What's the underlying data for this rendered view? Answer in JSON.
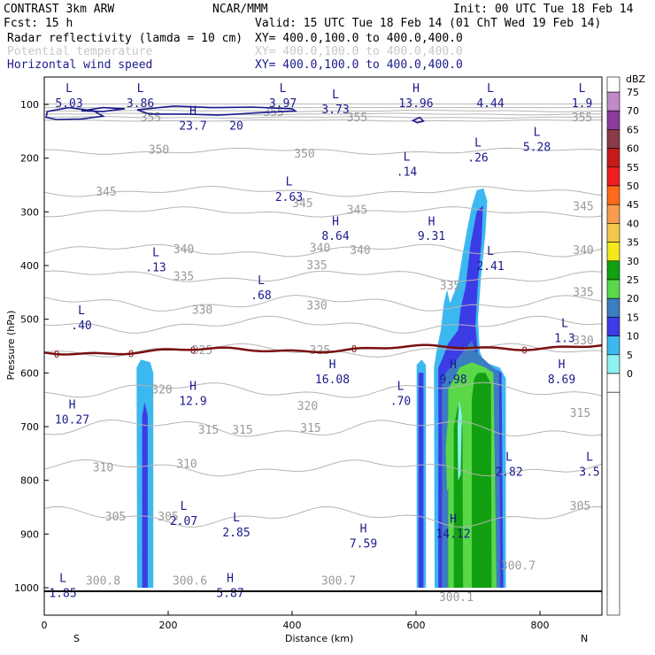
{
  "header": {
    "model": "CONTRAST  3km ARW",
    "org": "NCAR/MMM",
    "init": "Init: 00 UTC Tue 18 Feb 14",
    "fcst": "Fcst:   15 h",
    "valid": "Valid: 15 UTC Tue 18 Feb 14 (01 ChT Wed 19 Feb 14)",
    "fields": [
      {
        "name": "Radar reflectivity (lamda = 10 cm)",
        "xy": "XY= 400.0,100.0 to 400.0,400.0",
        "color": "#000000"
      },
      {
        "name": "Potential temperature",
        "xy": "XY= 400.0,100.0 to 400.0,400.0",
        "color": "#c8c8c8"
      },
      {
        "name": "Horizontal wind speed",
        "xy": "XY= 400.0,100.0 to 400.0,400.0",
        "color": "#1a1a8c"
      }
    ]
  },
  "chart_data": {
    "type": "cross-section",
    "xlabel": "Distance (km)",
    "ylabel": "Pressure (hPa)",
    "xlim": [
      0,
      900
    ],
    "ylim": [
      1050,
      60
    ],
    "x_ticks": [
      0,
      200,
      400,
      600,
      800
    ],
    "y_ticks": [
      100,
      200,
      300,
      400,
      500,
      600,
      700,
      800,
      900,
      1000
    ],
    "x_ends": {
      "left": "S",
      "right": "N"
    },
    "colorbar": {
      "unit": "dBZ",
      "levels": [
        75,
        70,
        65,
        60,
        55,
        50,
        45,
        40,
        35,
        30,
        25,
        20,
        15,
        10,
        5,
        0
      ],
      "colors": [
        "#c08ac6",
        "#8b3c9c",
        "#8a3a4a",
        "#c41a1a",
        "#f01e1e",
        "#ff6a1a",
        "#f59c4e",
        "#f2c84a",
        "#f2e81c",
        "#12a012",
        "#5ad84a",
        "#3c7cc0",
        "#3c3ce6",
        "#3cb8f0",
        "#8ef0f0",
        "#ffffff"
      ]
    },
    "freezing_line_label": "0",
    "theta_labels": [
      {
        "text": "355",
        "x": 172,
        "p": 125
      },
      {
        "text": "355",
        "x": 505,
        "p": 125
      },
      {
        "text": "355",
        "x": 868,
        "p": 125
      },
      {
        "text": "355",
        "x": 370,
        "p": 115
      },
      {
        "text": "350",
        "x": 185,
        "p": 185
      },
      {
        "text": "350",
        "x": 420,
        "p": 192
      },
      {
        "text": "345",
        "x": 100,
        "p": 263
      },
      {
        "text": "345",
        "x": 417,
        "p": 285
      },
      {
        "text": "345",
        "x": 505,
        "p": 297
      },
      {
        "text": "345",
        "x": 870,
        "p": 290
      },
      {
        "text": "340",
        "x": 225,
        "p": 370
      },
      {
        "text": "340",
        "x": 445,
        "p": 368
      },
      {
        "text": "340",
        "x": 510,
        "p": 372
      },
      {
        "text": "340",
        "x": 870,
        "p": 372
      },
      {
        "text": "335",
        "x": 225,
        "p": 421
      },
      {
        "text": "335",
        "x": 440,
        "p": 400
      },
      {
        "text": "335",
        "x": 655,
        "p": 438
      },
      {
        "text": "335",
        "x": 870,
        "p": 450
      },
      {
        "text": "330",
        "x": 255,
        "p": 483
      },
      {
        "text": "330",
        "x": 440,
        "p": 475
      },
      {
        "text": "330",
        "x": 870,
        "p": 540
      },
      {
        "text": "325",
        "x": 255,
        "p": 558
      },
      {
        "text": "325",
        "x": 445,
        "p": 558
      },
      {
        "text": "320",
        "x": 190,
        "p": 632
      },
      {
        "text": "320",
        "x": 425,
        "p": 662
      },
      {
        "text": "315",
        "x": 265,
        "p": 707
      },
      {
        "text": "315",
        "x": 320,
        "p": 707
      },
      {
        "text": "315",
        "x": 430,
        "p": 703
      },
      {
        "text": "315",
        "x": 865,
        "p": 675
      },
      {
        "text": "310",
        "x": 95,
        "p": 777
      },
      {
        "text": "310",
        "x": 230,
        "p": 770
      },
      {
        "text": "305",
        "x": 115,
        "p": 868
      },
      {
        "text": "305",
        "x": 200,
        "p": 868
      },
      {
        "text": "305",
        "x": 865,
        "p": 848
      },
      {
        "text": "300.8",
        "x": 95,
        "p": 988
      },
      {
        "text": "300.6",
        "x": 235,
        "p": 988
      },
      {
        "text": "300.7",
        "x": 475,
        "p": 988
      },
      {
        "text": "300.1",
        "x": 665,
        "p": 1018
      },
      {
        "text": "300.7",
        "x": 765,
        "p": 960
      }
    ],
    "wind_extrema": [
      {
        "kind": "L",
        "value": "5.03",
        "x": 40,
        "p": 70,
        "vp": 98
      },
      {
        "kind": "L",
        "value": "3.86",
        "x": 155,
        "p": 70,
        "vp": 98
      },
      {
        "kind": "L",
        "value": "3.97",
        "x": 385,
        "p": 70,
        "vp": 98
      },
      {
        "kind": "L",
        "value": "3.73",
        "x": 470,
        "p": 82,
        "vp": 110
      },
      {
        "kind": "H",
        "value": "13.96",
        "x": 600,
        "p": 70,
        "vp": 98
      },
      {
        "kind": "L",
        "value": "4.44",
        "x": 720,
        "p": 70,
        "vp": 98
      },
      {
        "kind": "L",
        "value": "1.9",
        "x": 868,
        "p": 70,
        "vp": 98
      },
      {
        "kind": "H",
        "value": "23.7",
        "x": 240,
        "p": 112,
        "vp": 140
      },
      {
        "kind": "L",
        "value": "5.28",
        "x": 795,
        "p": 152,
        "vp": 180
      },
      {
        "kind": "L",
        "value": ".26",
        "x": 700,
        "p": 172,
        "vp": 200
      },
      {
        "kind": "L",
        "value": ".14",
        "x": 585,
        "p": 198,
        "vp": 226
      },
      {
        "kind": "L",
        "value": "2.63",
        "x": 395,
        "p": 244,
        "vp": 273
      },
      {
        "kind": "H",
        "value": "8.64",
        "x": 470,
        "p": 318,
        "vp": 346
      },
      {
        "kind": "H",
        "value": "9.31",
        "x": 625,
        "p": 318,
        "vp": 346
      },
      {
        "kind": "L",
        "value": ".13",
        "x": 180,
        "p": 376,
        "vp": 404
      },
      {
        "kind": "L",
        "value": "2.41",
        "x": 720,
        "p": 374,
        "vp": 402
      },
      {
        "kind": "L",
        "value": ".68",
        "x": 350,
        "p": 428,
        "vp": 456
      },
      {
        "kind": "L",
        "value": ".40",
        "x": 60,
        "p": 484,
        "vp": 512
      },
      {
        "kind": "L",
        "value": "1.3",
        "x": 840,
        "p": 508,
        "vp": 536
      },
      {
        "kind": "H",
        "value": "16.08",
        "x": 465,
        "p": 585,
        "vp": 613
      },
      {
        "kind": "H",
        "value": "9.98",
        "x": 660,
        "p": 585,
        "vp": 613
      },
      {
        "kind": "H",
        "value": "8.69",
        "x": 835,
        "p": 585,
        "vp": 613
      },
      {
        "kind": "H",
        "value": "12.9",
        "x": 240,
        "p": 625,
        "vp": 653
      },
      {
        "kind": "L",
        "value": ".70",
        "x": 575,
        "p": 625,
        "vp": 653
      },
      {
        "kind": "H",
        "value": "10.27",
        "x": 45,
        "p": 660,
        "vp": 688
      },
      {
        "kind": "L",
        "value": "2.82",
        "x": 750,
        "p": 757,
        "vp": 785
      },
      {
        "kind": "L",
        "value": "3.5",
        "x": 880,
        "p": 757,
        "vp": 785
      },
      {
        "kind": "L",
        "value": "2.07",
        "x": 225,
        "p": 848,
        "vp": 876
      },
      {
        "kind": "L",
        "value": "2.85",
        "x": 310,
        "p": 870,
        "vp": 898
      },
      {
        "kind": "H",
        "value": "7.59",
        "x": 515,
        "p": 890,
        "vp": 918
      },
      {
        "kind": "H",
        "value": "14.12",
        "x": 660,
        "p": 872,
        "vp": 900
      },
      {
        "kind": "L",
        "value": "1.85",
        "x": 30,
        "p": 983,
        "vp": 1011
      },
      {
        "kind": "H",
        "value": "5.87",
        "x": 300,
        "p": 983,
        "vp": 1011
      }
    ],
    "wind_contour_value": "20"
  }
}
